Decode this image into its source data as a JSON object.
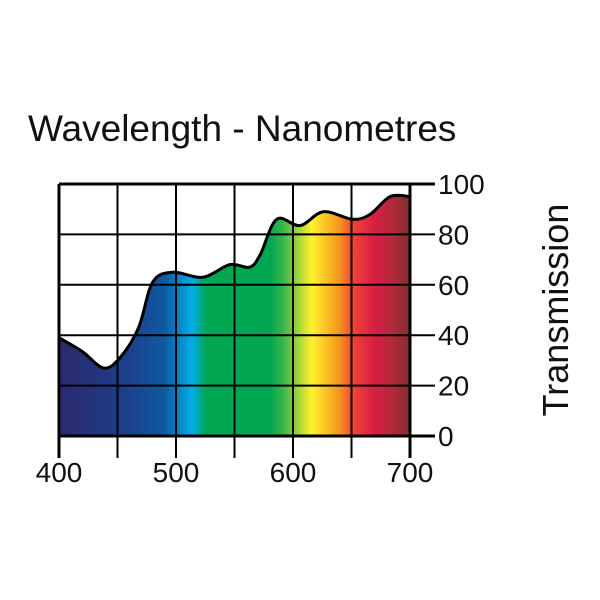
{
  "chart_data": {
    "type": "area",
    "title": "Wavelength - Nanometres",
    "xlabel": "Wavelength - Nanometres",
    "ylabel": "Transmission",
    "xlim": [
      400,
      700
    ],
    "ylim": [
      0,
      100
    ],
    "xticks": [
      "400",
      "500",
      "600",
      "700"
    ],
    "yticks": [
      "0",
      "20",
      "40",
      "60",
      "80",
      "100"
    ],
    "grid": true,
    "series": [
      {
        "name": "Transmission",
        "x": [
          400,
          420,
          438,
          452,
          468,
          480,
          497,
          523,
          546,
          563,
          572,
          586,
          606,
          626,
          651,
          666,
          683,
          700
        ],
        "y": [
          39,
          33.5,
          27,
          31,
          43,
          61,
          65,
          63,
          68,
          67,
          72,
          86,
          83.5,
          89,
          86,
          88,
          95,
          95
        ]
      }
    ],
    "spectrum_colors": [
      "#2b2a6e",
      "#1d3c8a",
      "#0f5aa0",
      "#00aee8",
      "#00a650",
      "#00a650",
      "#3cb64a",
      "#fff22d",
      "#f7941d",
      "#ef4136",
      "#d71e44",
      "#b22a3a",
      "#7d2e2e"
    ]
  }
}
